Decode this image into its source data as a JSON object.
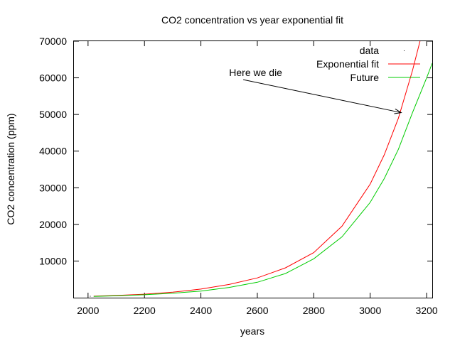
{
  "chart_data": {
    "type": "line",
    "title": "CO2 concentration vs year exponential fit",
    "xlabel": "years",
    "ylabel": "CO2 concentration (ppm)",
    "xlim": [
      1950,
      3220
    ],
    "ylim": [
      0,
      70000
    ],
    "x_ticks": [
      2000,
      2200,
      2400,
      2600,
      2800,
      3000,
      3200
    ],
    "y_ticks": [
      10000,
      20000,
      30000,
      40000,
      50000,
      60000,
      70000
    ],
    "grid": false,
    "legend_position": "top-right",
    "series": [
      {
        "name": "data",
        "color": "#000000",
        "style": "points",
        "x": [
          2008
        ],
        "y": [
          385
        ]
      },
      {
        "name": "Exponential fit",
        "color": "#ff0000",
        "style": "line",
        "x": [
          2020,
          2100,
          2200,
          2300,
          2400,
          2500,
          2600,
          2700,
          2800,
          2900,
          3000,
          3050,
          3100,
          3150,
          3180
        ],
        "y": [
          400,
          600,
          950,
          1500,
          2350,
          3600,
          5400,
          8150,
          12300,
          19500,
          31000,
          39000,
          49000,
          62000,
          71000
        ]
      },
      {
        "name": "Future",
        "color": "#00cc00",
        "style": "line",
        "x": [
          2020,
          2100,
          2200,
          2300,
          2400,
          2500,
          2600,
          2700,
          2800,
          2900,
          3000,
          3050,
          3100,
          3150,
          3200,
          3220
        ],
        "y": [
          350,
          500,
          800,
          1200,
          1800,
          2800,
          4200,
          6600,
          10600,
          16600,
          26000,
          32500,
          40500,
          50500,
          60000,
          64000
        ]
      }
    ],
    "annotations": [
      {
        "text": "Here we die",
        "text_x": 2500,
        "text_y": 61500,
        "arrow_from_x": 2550,
        "arrow_from_y": 59500,
        "arrow_to_x": 3110,
        "arrow_to_y": 50500
      }
    ]
  }
}
